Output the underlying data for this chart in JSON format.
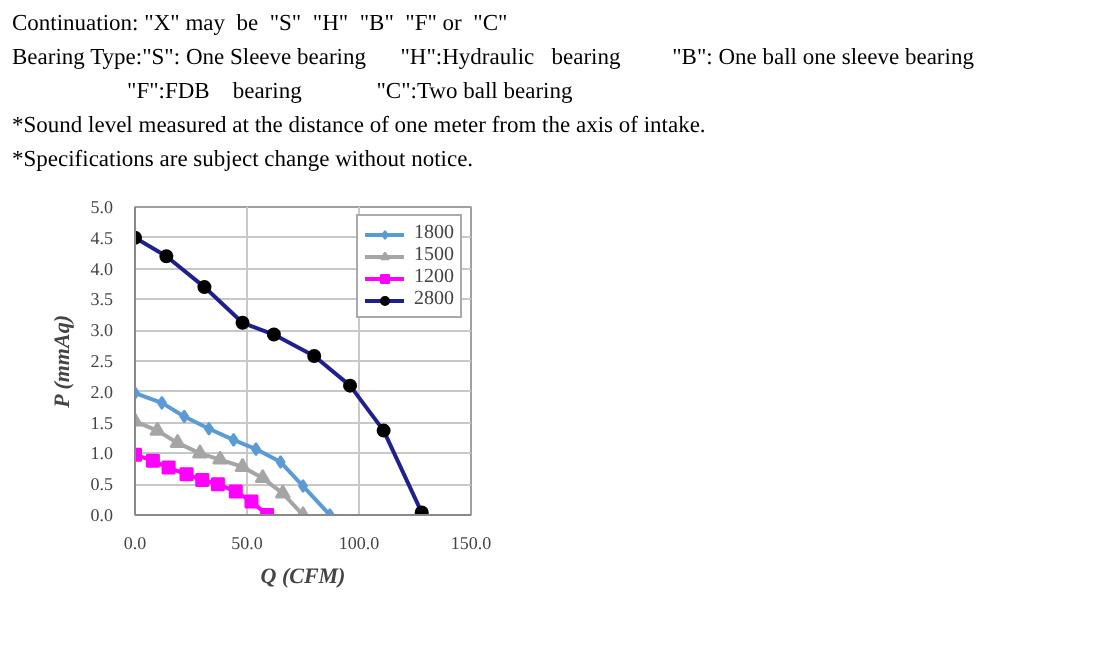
{
  "chart_data": {
    "type": "line",
    "annotations": [
      "Continuation: \"X\" may  be  \"S\"  \"H\"  \"B\"  \"F\" or  \"C\"",
      "Bearing Type:\"S\": One Sleeve bearing      \"H\":Hydraulic   bearing         \"B\": One ball one sleeve bearing",
      "                    \"F\":FDB    bearing             \"C\":Two ball bearing",
      "*Sound level measured at the distance of one meter from the axis of intake.",
      "*Specifications are subject change without notice."
    ],
    "xlabel": "Q (CFM)",
    "ylabel": "P (mmAq)",
    "xlim": [
      0,
      150
    ],
    "ylim": [
      0,
      5
    ],
    "xticks": [
      {
        "value": 0,
        "label": "0.0"
      },
      {
        "value": 50,
        "label": "50.0"
      },
      {
        "value": 100,
        "label": "100.0"
      },
      {
        "value": 150,
        "label": "150.0"
      }
    ],
    "yticks": [
      {
        "value": 0,
        "label": "0.0"
      },
      {
        "value": 0.5,
        "label": "0.5"
      },
      {
        "value": 1,
        "label": "1.0"
      },
      {
        "value": 1.5,
        "label": "1.5"
      },
      {
        "value": 2,
        "label": "2.0"
      },
      {
        "value": 2.5,
        "label": "2.5"
      },
      {
        "value": 3,
        "label": "3.0"
      },
      {
        "value": 3.5,
        "label": "3.5"
      },
      {
        "value": 4,
        "label": "4.0"
      },
      {
        "value": 4.5,
        "label": "4.5"
      },
      {
        "value": 5,
        "label": "5.0"
      }
    ],
    "grid": true,
    "legend": "top right",
    "line_style": "solid",
    "series": [
      {
        "name": "1800",
        "color": "#5b9bd5",
        "marker": "diamond",
        "x": [
          0,
          12,
          22,
          33,
          44,
          54,
          65,
          75,
          87
        ],
        "values": [
          1.98,
          1.82,
          1.6,
          1.4,
          1.22,
          1.07,
          0.86,
          0.47,
          0
        ]
      },
      {
        "name": "1500",
        "color": "#a5a5a5",
        "marker": "triangle",
        "x": [
          0,
          10,
          19,
          29,
          38,
          48,
          57,
          66,
          75
        ],
        "values": [
          1.52,
          1.37,
          1.17,
          1.0,
          0.9,
          0.78,
          0.6,
          0.35,
          0
        ]
      },
      {
        "name": "1200",
        "color": "#ff00ff",
        "marker": "square",
        "x": [
          0,
          8,
          15,
          23,
          30,
          37,
          45,
          52,
          59
        ],
        "values": [
          0.98,
          0.88,
          0.77,
          0.66,
          0.57,
          0.5,
          0.38,
          0.22,
          0
        ]
      },
      {
        "name": "2800",
        "color": "#1f1f8f",
        "marker": "circle",
        "x": [
          0,
          14,
          31,
          48,
          62,
          80,
          96,
          111,
          128
        ],
        "values": [
          4.5,
          4.2,
          3.7,
          3.12,
          2.93,
          2.58,
          2.1,
          1.37,
          0.04
        ]
      }
    ]
  }
}
